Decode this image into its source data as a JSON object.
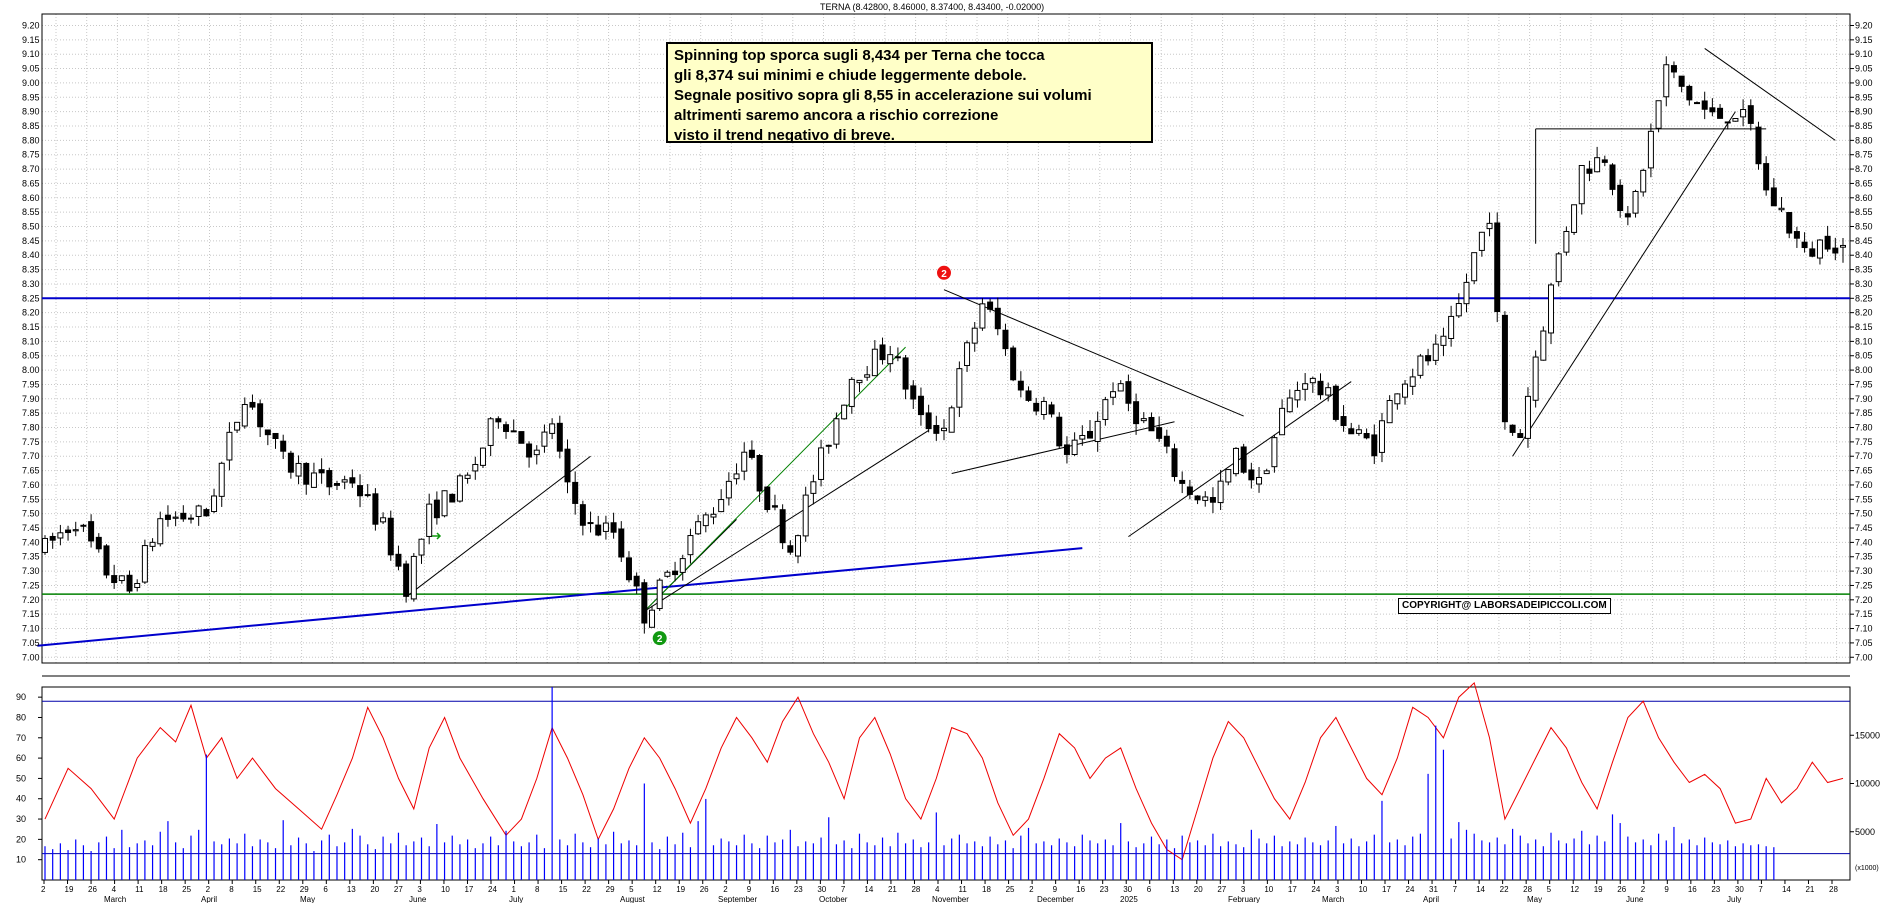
{
  "header": "TERNA (8.42800, 8.46000, 8.37400, 8.43400, -0.02000)",
  "note_lines": [
    "Spinning top sporca sugli 8,434 per Terna che tocca",
    "gli 8,374 sui minimi e chiude leggermente debole.",
    "Segnale positivo sopra gli 8,55 in accelerazione sui volumi",
    "altrimenti saremo ancora a rischio correzione",
    "visto il trend negativo di breve."
  ],
  "copyright": "COPYRIGHT@ LABORSADEIPICCOLI.COM",
  "markers": [
    "2",
    "2"
  ],
  "colors": {
    "price": "#000000",
    "resistance_line": "#0000cc",
    "support_line": "#008000",
    "oscillator": "#ee0000",
    "volume": "#0000ff",
    "marker_red": "#ee1111",
    "marker_green": "#119911"
  },
  "chart_data": [
    {
      "type": "candlestick",
      "title": "TERNA (8.42800, 8.46000, 8.37400, 8.43400, -0.02000)",
      "y_ticks": [
        "9.20",
        "9.15",
        "9.10",
        "9.05",
        "9.00",
        "8.95",
        "8.90",
        "8.85",
        "8.80",
        "8.75",
        "8.70",
        "8.65",
        "8.60",
        "8.55",
        "8.50",
        "8.45",
        "8.40",
        "8.35",
        "8.30",
        "8.25",
        "8.20",
        "8.15",
        "8.10",
        "8.05",
        "8.00",
        "7.95",
        "7.90",
        "7.85",
        "7.80",
        "7.75",
        "7.70",
        "7.65",
        "7.60",
        "7.55",
        "7.50",
        "7.45",
        "7.40",
        "7.35",
        "7.30",
        "7.25",
        "7.20",
        "7.15",
        "7.10",
        "7.05",
        "7.00"
      ],
      "ylim": [
        6.98,
        9.24
      ],
      "horizontal_levels": [
        8.25,
        7.22
      ],
      "last_candle": {
        "open": 8.428,
        "high": 8.46,
        "low": 8.374,
        "close": 8.434
      },
      "path": [
        [
          0,
          7.38
        ],
        [
          4,
          7.48
        ],
        [
          8,
          7.3
        ],
        [
          11,
          7.23
        ],
        [
          15,
          7.48
        ],
        [
          21,
          7.5
        ],
        [
          26,
          7.92
        ],
        [
          31,
          7.68
        ],
        [
          37,
          7.6
        ],
        [
          40,
          7.62
        ],
        [
          44,
          7.45
        ],
        [
          47,
          7.25
        ],
        [
          50,
          7.5
        ],
        [
          55,
          7.62
        ],
        [
          59,
          7.85
        ],
        [
          64,
          7.7
        ],
        [
          66,
          7.82
        ],
        [
          68,
          7.58
        ],
        [
          71,
          7.45
        ],
        [
          74,
          7.44
        ],
        [
          78,
          7.15
        ],
        [
          81,
          7.28
        ],
        [
          84,
          7.42
        ],
        [
          87,
          7.52
        ],
        [
          91,
          7.72
        ],
        [
          94,
          7.55
        ],
        [
          97,
          7.38
        ],
        [
          100,
          7.62
        ],
        [
          105,
          7.98
        ],
        [
          110,
          8.08
        ],
        [
          114,
          7.82
        ],
        [
          117,
          7.8
        ],
        [
          120,
          8.07
        ],
        [
          122,
          8.24
        ],
        [
          124,
          8.14
        ],
        [
          127,
          7.92
        ],
        [
          130,
          7.88
        ],
        [
          133,
          7.7
        ],
        [
          136,
          7.78
        ],
        [
          139,
          7.95
        ],
        [
          142,
          7.85
        ],
        [
          145,
          7.75
        ],
        [
          148,
          7.6
        ],
        [
          152,
          7.53
        ],
        [
          155,
          7.7
        ],
        [
          158,
          7.6
        ],
        [
          161,
          7.85
        ],
        [
          164,
          7.98
        ],
        [
          167,
          7.9
        ],
        [
          170,
          7.78
        ],
        [
          173,
          7.74
        ],
        [
          176,
          7.95
        ],
        [
          179,
          8.02
        ],
        [
          182,
          8.08
        ],
        [
          184,
          8.22
        ],
        [
          186,
          8.4
        ],
        [
          188,
          8.55
        ],
        [
          190,
          7.8
        ],
        [
          192,
          7.78
        ],
        [
          194,
          8.05
        ],
        [
          197,
          8.4
        ],
        [
          200,
          8.7
        ],
        [
          203,
          8.75
        ],
        [
          206,
          8.5
        ],
        [
          209,
          8.82
        ],
        [
          211,
          9.05
        ],
        [
          214,
          8.95
        ],
        [
          217,
          8.88
        ],
        [
          220,
          8.9
        ],
        [
          222,
          8.84
        ],
        [
          224,
          8.62
        ],
        [
          226,
          8.55
        ],
        [
          229,
          8.4
        ],
        [
          232,
          8.46
        ],
        [
          234,
          8.43
        ]
      ]
    },
    {
      "type": "line",
      "name": "",
      "y_ticks": [
        "90",
        "80",
        "70",
        "60",
        "50",
        "40",
        "30",
        "20",
        "10"
      ],
      "ylim": [
        0,
        95
      ],
      "horizontal_levels": [
        88,
        13
      ],
      "path": [
        [
          0,
          30
        ],
        [
          3,
          55
        ],
        [
          6,
          45
        ],
        [
          9,
          30
        ],
        [
          12,
          60
        ],
        [
          15,
          75
        ],
        [
          17,
          68
        ],
        [
          19,
          86
        ],
        [
          21,
          60
        ],
        [
          23,
          70
        ],
        [
          25,
          50
        ],
        [
          27,
          60
        ],
        [
          30,
          45
        ],
        [
          33,
          35
        ],
        [
          36,
          25
        ],
        [
          38,
          42
        ],
        [
          40,
          60
        ],
        [
          42,
          85
        ],
        [
          44,
          70
        ],
        [
          46,
          50
        ],
        [
          48,
          35
        ],
        [
          50,
          65
        ],
        [
          52,
          80
        ],
        [
          54,
          60
        ],
        [
          57,
          40
        ],
        [
          60,
          22
        ],
        [
          62,
          30
        ],
        [
          64,
          50
        ],
        [
          66,
          75
        ],
        [
          68,
          60
        ],
        [
          70,
          42
        ],
        [
          72,
          20
        ],
        [
          74,
          35
        ],
        [
          76,
          55
        ],
        [
          78,
          70
        ],
        [
          80,
          60
        ],
        [
          82,
          45
        ],
        [
          84,
          28
        ],
        [
          86,
          45
        ],
        [
          88,
          65
        ],
        [
          90,
          80
        ],
        [
          92,
          70
        ],
        [
          94,
          58
        ],
        [
          96,
          78
        ],
        [
          98,
          90
        ],
        [
          100,
          72
        ],
        [
          102,
          58
        ],
        [
          104,
          40
        ],
        [
          106,
          70
        ],
        [
          108,
          80
        ],
        [
          110,
          62
        ],
        [
          112,
          40
        ],
        [
          114,
          30
        ],
        [
          116,
          50
        ],
        [
          118,
          75
        ],
        [
          120,
          72
        ],
        [
          122,
          60
        ],
        [
          124,
          38
        ],
        [
          126,
          22
        ],
        [
          128,
          30
        ],
        [
          130,
          50
        ],
        [
          132,
          72
        ],
        [
          134,
          65
        ],
        [
          136,
          50
        ],
        [
          138,
          60
        ],
        [
          140,
          65
        ],
        [
          142,
          45
        ],
        [
          144,
          28
        ],
        [
          146,
          15
        ],
        [
          148,
          10
        ],
        [
          150,
          35
        ],
        [
          152,
          60
        ],
        [
          154,
          78
        ],
        [
          156,
          70
        ],
        [
          158,
          55
        ],
        [
          160,
          40
        ],
        [
          162,
          30
        ],
        [
          164,
          48
        ],
        [
          166,
          70
        ],
        [
          168,
          80
        ],
        [
          170,
          65
        ],
        [
          172,
          50
        ],
        [
          174,
          42
        ],
        [
          176,
          60
        ],
        [
          178,
          85
        ],
        [
          180,
          80
        ],
        [
          182,
          70
        ],
        [
          184,
          90
        ],
        [
          186,
          97
        ],
        [
          188,
          70
        ],
        [
          190,
          30
        ],
        [
          192,
          45
        ],
        [
          194,
          60
        ],
        [
          196,
          75
        ],
        [
          198,
          65
        ],
        [
          200,
          48
        ],
        [
          202,
          35
        ],
        [
          204,
          58
        ],
        [
          206,
          80
        ],
        [
          208,
          88
        ],
        [
          210,
          70
        ],
        [
          212,
          58
        ],
        [
          214,
          48
        ],
        [
          216,
          52
        ],
        [
          218,
          45
        ],
        [
          220,
          28
        ],
        [
          222,
          30
        ],
        [
          224,
          50
        ],
        [
          226,
          38
        ],
        [
          228,
          45
        ],
        [
          230,
          58
        ],
        [
          232,
          48
        ],
        [
          234,
          50
        ]
      ]
    },
    {
      "type": "bar",
      "name": "",
      "y_ticks": [
        "15000",
        "10000",
        "5000"
      ],
      "ylim": [
        0,
        20000
      ],
      "unit_label": "(x1000)",
      "values": [
        3500,
        3200,
        3800,
        3100,
        4200,
        3600,
        3000,
        3900,
        4500,
        3300,
        5200,
        3400,
        3800,
        4100,
        3600,
        5000,
        6100,
        3900,
        3300,
        4600,
        5200,
        13000,
        4000,
        3700,
        4300,
        3800,
        4800,
        3500,
        4200,
        3900,
        3300,
        6200,
        3600,
        4400,
        3800,
        3000,
        4100,
        4700,
        3500,
        3900,
        5300,
        4600,
        3700,
        3200,
        4500,
        3800,
        4900,
        3600,
        4000,
        4400,
        3500,
        5800,
        3900,
        4600,
        3700,
        4200,
        3300,
        3800,
        4500,
        3600,
        5100,
        4000,
        3500,
        3900,
        4700,
        3300,
        20000,
        4200,
        3600,
        4800,
        3900,
        3400,
        4300,
        3700,
        5000,
        3800,
        4100,
        3600,
        10000,
        3900,
        3200,
        4500,
        3700,
        4900,
        3400,
        6100,
        8400,
        3600,
        4300,
        4000,
        3600,
        4700,
        3800,
        3300,
        4600,
        3900,
        4200,
        5200,
        3500,
        4000,
        3800,
        4400,
        6500,
        3700,
        4100,
        3300,
        4800,
        3900,
        3600,
        4400,
        3500,
        4900,
        3800,
        4200,
        3400,
        3900,
        7000,
        3600,
        4300,
        4700,
        3800,
        4000,
        3500,
        4500,
        3700,
        4100,
        3300,
        4600,
        5400,
        3800,
        4000,
        3600,
        4300,
        3900,
        3500,
        4700,
        4100,
        3800,
        4200,
        3600,
        5900,
        4000,
        3400,
        3800,
        4500,
        3700,
        4200,
        3300,
        4600,
        3900,
        4100,
        3600,
        4800,
        3500,
        4000,
        3700,
        3400,
        5200,
        4300,
        3800,
        4600,
        3500,
        4000,
        3700,
        4400,
        3900,
        3600,
        4100,
        5600,
        3800,
        4300,
        3500,
        4000,
        4700,
        8200,
        3900,
        4200,
        3600,
        4500,
        4800,
        11000,
        16000,
        13500,
        4300,
        6000,
        5200,
        4800,
        4100,
        3900,
        4400,
        3700,
        5300,
        4600,
        3800,
        4200,
        3500,
        4900,
        4100,
        3800,
        4300,
        5100,
        3700,
        4600,
        4000,
        6800,
        5900,
        4500,
        3900,
        4200,
        3600,
        4800,
        4100,
        5500,
        3800,
        4200,
        3600,
        4400,
        3900,
        3700,
        4100,
        3500,
        3800,
        3600,
        3700,
        3500,
        3400
      ]
    }
  ],
  "x_axis": {
    "day_ticks": [
      "2",
      "19",
      "26",
      "4",
      "11",
      "18",
      "25",
      "2",
      "8",
      "15",
      "22",
      "29",
      "6",
      "13",
      "20",
      "27",
      "3",
      "10",
      "17",
      "24",
      "1",
      "8",
      "15",
      "22",
      "29",
      "5",
      "12",
      "19",
      "26",
      "2",
      "9",
      "16",
      "23",
      "30",
      "7",
      "14",
      "21",
      "28",
      "4",
      "11",
      "18",
      "25",
      "2",
      "9",
      "16",
      "23",
      "30",
      "6",
      "13",
      "20",
      "27",
      "3",
      "10",
      "17",
      "24",
      "3",
      "10",
      "17",
      "24",
      "31",
      "7",
      "14",
      "22",
      "28",
      "5",
      "12",
      "19",
      "26",
      "2",
      "9",
      "16",
      "23",
      "30",
      "7",
      "14",
      "21",
      "28"
    ],
    "months": [
      "March",
      "April",
      "May",
      "June",
      "July",
      "August",
      "September",
      "October",
      "November",
      "December",
      "2025",
      "February",
      "March",
      "April",
      "May",
      "June",
      "July"
    ]
  }
}
